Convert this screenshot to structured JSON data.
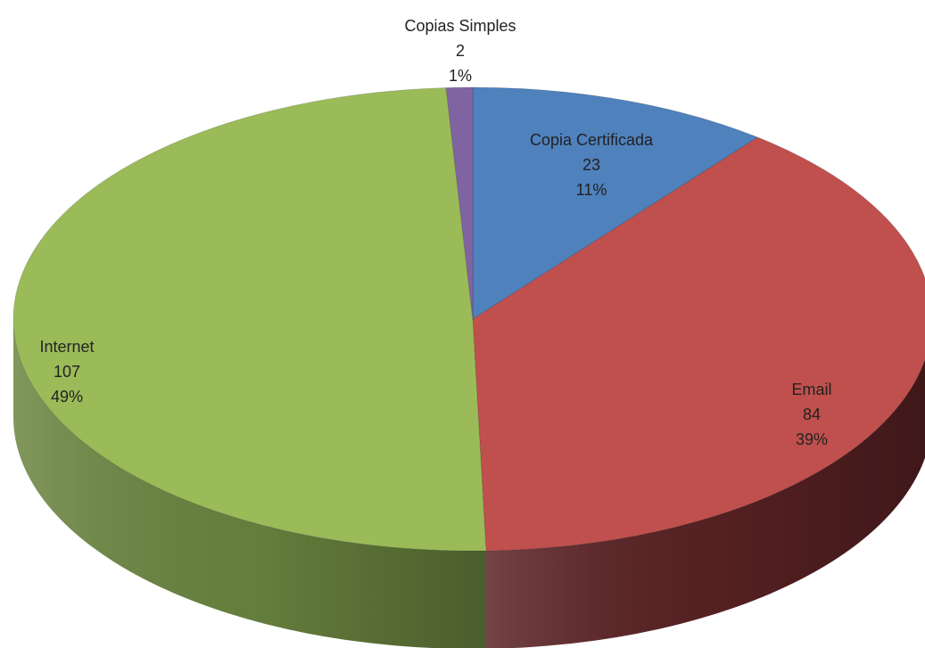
{
  "chart_data": {
    "type": "pie3d",
    "categories": [
      "Copia Certificada",
      "Email",
      "Internet",
      "Copias Simples"
    ],
    "values": [
      23,
      84,
      107,
      2
    ],
    "percent_labels": [
      "11%",
      "39%",
      "49%",
      "1%"
    ],
    "colors": [
      "#4f81bd",
      "#c0504d",
      "#9bbb59",
      "#8064a2"
    ],
    "side_colors": [
      "#2f4f78",
      "#5a2224",
      "#6b8540",
      "#4e3c68"
    ]
  }
}
